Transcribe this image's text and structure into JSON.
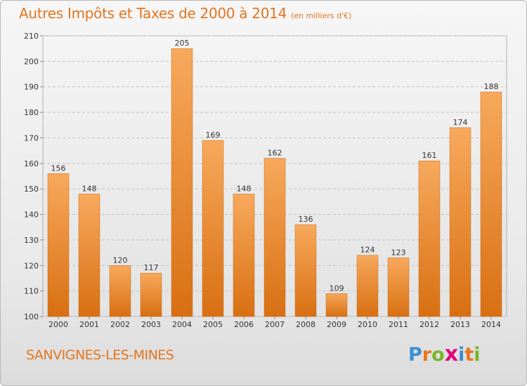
{
  "header": {
    "title": "Autres Impôts et Taxes de 2000 à 2014",
    "unit": "(en milliers d'€)"
  },
  "footer": {
    "place": "SANVIGNES-LES-MINES",
    "brand": "Proxiti",
    "brand_colors": [
      "#3a8fd6",
      "#e9751d",
      "#76b82a",
      "#e4007c",
      "#3a8fd6",
      "#e9751d",
      "#76b82a"
    ]
  },
  "chart_data": {
    "type": "bar",
    "title": "Autres Impôts et Taxes de 2000 à 2014",
    "subtitle": "(en milliers d'€)",
    "xlabel": "",
    "ylabel": "",
    "categories": [
      "2000",
      "2001",
      "2002",
      "2003",
      "2004",
      "2005",
      "2006",
      "2007",
      "2008",
      "2009",
      "2010",
      "2011",
      "2012",
      "2013",
      "2014"
    ],
    "values": [
      156,
      148,
      120,
      117,
      205,
      169,
      148,
      162,
      136,
      109,
      124,
      123,
      161,
      174,
      188
    ],
    "ylim": [
      100,
      210
    ],
    "yticks": [
      100,
      110,
      120,
      130,
      140,
      150,
      160,
      170,
      180,
      190,
      200,
      210
    ],
    "grid": true,
    "legend": "none",
    "bar_color": "#f2923a",
    "bar_color_light": "#f7a95c",
    "bar_color_dark": "#d86f12"
  }
}
